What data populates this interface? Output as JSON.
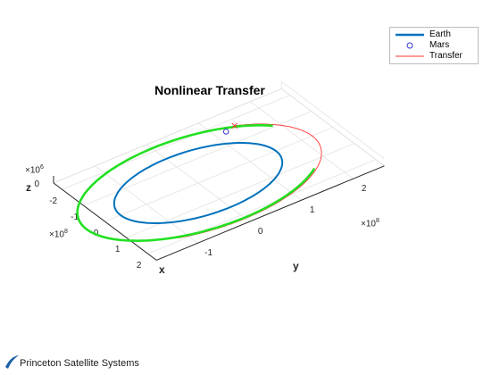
{
  "chart_data": {
    "type": "line",
    "title": "Nonlinear Transfer",
    "xlabel": "x",
    "ylabel": "y",
    "zlabel": "z",
    "x_exponent": "×10",
    "x_exponent_power": "8",
    "y_exponent": "×10",
    "y_exponent_power": "8",
    "z_exponent": "×10",
    "z_exponent_power": "6",
    "x_ticks": [
      "-2",
      "-1",
      "0",
      "1",
      "2"
    ],
    "y_ticks": [
      "-1",
      "0",
      "1",
      "2"
    ],
    "z_ticks": [
      "0"
    ],
    "xlim": [
      -2.4,
      2.4
    ],
    "ylim": [
      -1.8,
      2.6
    ],
    "grid": true,
    "legend_position": "top-right",
    "colors": {
      "earth": "#0072BD",
      "mars": "#3333cc",
      "transfer": "#ff3333",
      "transfer_trace": "#22e022"
    },
    "series": [
      {
        "name": "Earth",
        "shape": "circular orbit",
        "radius_1e8": 1.5
      },
      {
        "name": "Mars",
        "shape": "marker",
        "x_1e8": -1.6,
        "y_1e8": 1.2
      },
      {
        "name": "Transfer",
        "shape": "orbit arc",
        "radius_1e8": 2.2
      }
    ],
    "legend": [
      "Earth",
      "Mars",
      "Transfer"
    ]
  },
  "logo": {
    "text": "Princeton Satellite Systems"
  }
}
